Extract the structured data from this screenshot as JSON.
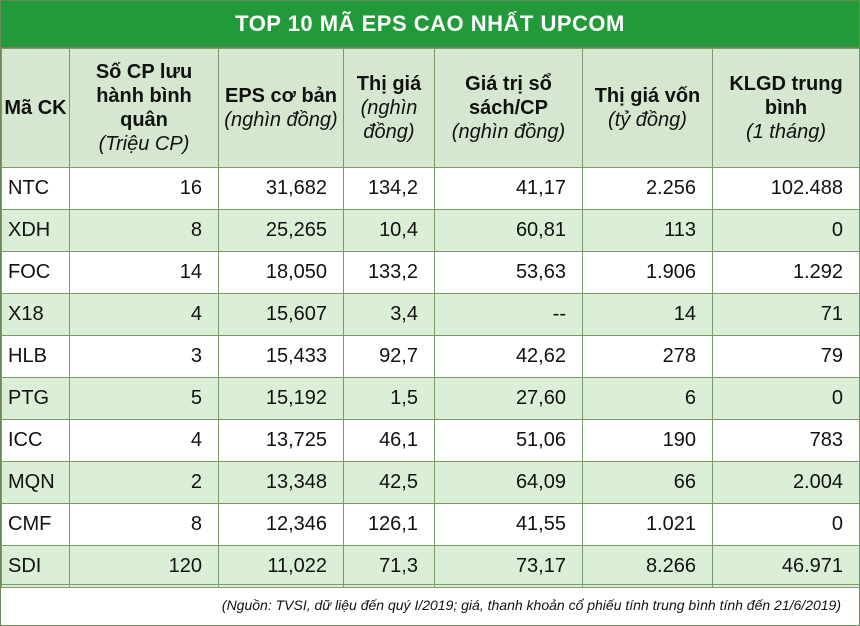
{
  "title": "TOP 10 MÃ EPS CAO NHẤT UPCOM",
  "columns": [
    {
      "label": "Mã CK",
      "unit": ""
    },
    {
      "label": "Số CP lưu hành bình quân",
      "unit": "(Triệu CP)"
    },
    {
      "label": "EPS cơ bản",
      "unit": "(nghìn đồng)"
    },
    {
      "label": "Thị giá",
      "unit": "(nghìn đồng)"
    },
    {
      "label": "Giá trị sổ sách/CP",
      "unit": "(nghìn đồng)"
    },
    {
      "label": "Thị giá vốn",
      "unit": "(tỷ đồng)"
    },
    {
      "label": "KLGD trung bình",
      "unit": "(1 tháng)"
    }
  ],
  "rows": [
    [
      "NTC",
      "16",
      "31,682",
      "134,2",
      "41,17",
      "2.256",
      "102.488"
    ],
    [
      "XDH",
      "8",
      "25,265",
      "10,4",
      "60,81",
      "113",
      "0"
    ],
    [
      "FOC",
      "14",
      "18,050",
      "133,2",
      "53,63",
      "1.906",
      "1.292"
    ],
    [
      "X18",
      "4",
      "15,607",
      "3,4",
      "--",
      "14",
      "71"
    ],
    [
      "HLB",
      "3",
      "15,433",
      "92,7",
      "42,62",
      "278",
      "79"
    ],
    [
      "PTG",
      "5",
      "15,192",
      "1,5",
      "27,60",
      "6",
      "0"
    ],
    [
      "ICC",
      "4",
      "13,725",
      "46,1",
      "51,06",
      "190",
      "783"
    ],
    [
      "MQN",
      "2",
      "13,348",
      "42,5",
      "64,09",
      "66",
      "2.004"
    ],
    [
      "CMF",
      "8",
      "12,346",
      "126,1",
      "41,55",
      "1.021",
      "0"
    ],
    [
      "SDI",
      "120",
      "11,022",
      "71,3",
      "73,17",
      "8.266",
      "46.971"
    ]
  ],
  "note": "(Nguồn: TVSI, dữ liệu đến quý I/2019; giá, thanh khoản cổ phiếu tính trung bình tính đến 21/6/2019)",
  "colors": {
    "header_bar": "#239a39",
    "header_row": "#d5e8cf",
    "alt_row": "#dbeed6"
  }
}
